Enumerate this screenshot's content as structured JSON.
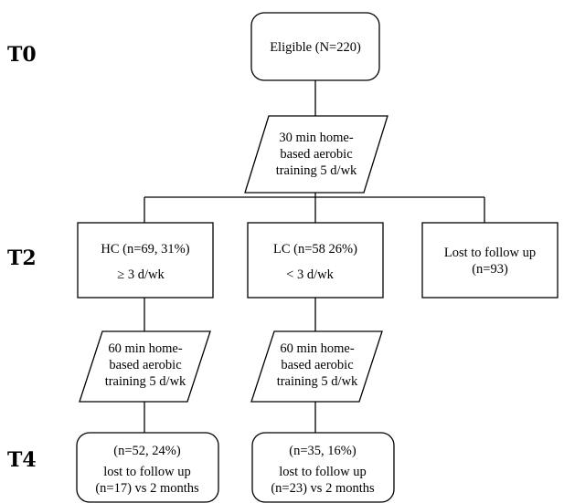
{
  "stages": {
    "t0": "T0",
    "t2": "T2",
    "t4": "T4"
  },
  "eligible": {
    "text": "Eligible  (N=220)"
  },
  "training_30": {
    "lines": [
      "30 min home-",
      "based aerobic",
      "training  5 d/wk"
    ]
  },
  "hc": {
    "lines": [
      "HC (n=69, 31%)",
      "≥ 3 d/wk"
    ]
  },
  "lc": {
    "lines": [
      "LC (n=58 26%)",
      "< 3 d/wk"
    ]
  },
  "lost_t2": {
    "lines": [
      "Lost to follow up",
      "(n=93)"
    ]
  },
  "training_60_hc": {
    "lines": [
      "60 min home-",
      "based aerobic",
      "training  5 d/wk"
    ]
  },
  "training_60_lc": {
    "lines": [
      "60 min home-",
      "based aerobic",
      "training  5 d/wk"
    ]
  },
  "hc_t4": {
    "lines": [
      "(n=52, 24%)",
      "lost to follow up",
      "(n=17) vs 2 months"
    ]
  },
  "lc_t4": {
    "lines": [
      "(n=35, 16%)",
      "lost to follow up",
      "(n=23) vs 2 months"
    ]
  }
}
